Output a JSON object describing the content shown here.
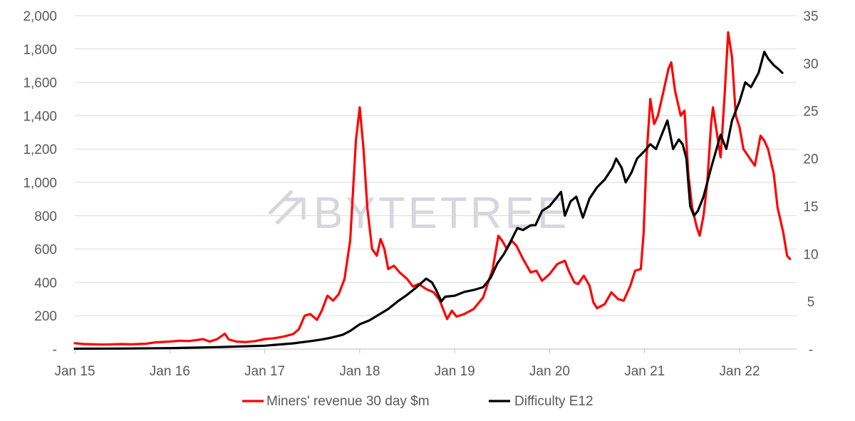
{
  "chart_data": {
    "type": "line",
    "watermark": "BYTETREE",
    "x_ticks": [
      "Jan 15",
      "Jan 16",
      "Jan 17",
      "Jan 18",
      "Jan 19",
      "Jan 20",
      "Jan 21",
      "Jan 22"
    ],
    "x_range": [
      2015.0,
      2022.6
    ],
    "y_left": {
      "ticks": [
        "-",
        "200",
        "400",
        "600",
        "800",
        "1,000",
        "1,200",
        "1,400",
        "1,600",
        "1,800",
        "2,000"
      ],
      "ylim": [
        0,
        2000
      ]
    },
    "y_right": {
      "ticks": [
        "-",
        "5",
        "10",
        "15",
        "20",
        "25",
        "30",
        "35"
      ],
      "ylim": [
        0,
        35
      ]
    },
    "grid": true,
    "legend_position": "bottom",
    "series": [
      {
        "name": "Miners' revenue 30 day $m",
        "color": "#ff0000",
        "axis": "left",
        "points": [
          [
            2015.0,
            35
          ],
          [
            2015.1,
            30
          ],
          [
            2015.3,
            27
          ],
          [
            2015.5,
            30
          ],
          [
            2015.6,
            28
          ],
          [
            2015.75,
            32
          ],
          [
            2015.85,
            40
          ],
          [
            2016.0,
            45
          ],
          [
            2016.1,
            50
          ],
          [
            2016.2,
            48
          ],
          [
            2016.3,
            55
          ],
          [
            2016.35,
            60
          ],
          [
            2016.42,
            45
          ],
          [
            2016.5,
            60
          ],
          [
            2016.58,
            92
          ],
          [
            2016.62,
            58
          ],
          [
            2016.7,
            45
          ],
          [
            2016.8,
            42
          ],
          [
            2016.9,
            48
          ],
          [
            2017.0,
            60
          ],
          [
            2017.1,
            65
          ],
          [
            2017.2,
            75
          ],
          [
            2017.3,
            90
          ],
          [
            2017.36,
            120
          ],
          [
            2017.42,
            200
          ],
          [
            2017.48,
            210
          ],
          [
            2017.55,
            175
          ],
          [
            2017.6,
            230
          ],
          [
            2017.66,
            320
          ],
          [
            2017.72,
            290
          ],
          [
            2017.78,
            330
          ],
          [
            2017.84,
            420
          ],
          [
            2017.9,
            650
          ],
          [
            2017.96,
            1250
          ],
          [
            2018.0,
            1450
          ],
          [
            2018.04,
            1200
          ],
          [
            2018.08,
            850
          ],
          [
            2018.13,
            600
          ],
          [
            2018.18,
            560
          ],
          [
            2018.22,
            660
          ],
          [
            2018.26,
            600
          ],
          [
            2018.3,
            480
          ],
          [
            2018.36,
            500
          ],
          [
            2018.42,
            460
          ],
          [
            2018.5,
            420
          ],
          [
            2018.56,
            375
          ],
          [
            2018.62,
            390
          ],
          [
            2018.7,
            360
          ],
          [
            2018.78,
            340
          ],
          [
            2018.84,
            295
          ],
          [
            2018.92,
            180
          ],
          [
            2018.97,
            230
          ],
          [
            2019.02,
            195
          ],
          [
            2019.1,
            210
          ],
          [
            2019.2,
            240
          ],
          [
            2019.3,
            310
          ],
          [
            2019.4,
            480
          ],
          [
            2019.46,
            680
          ],
          [
            2019.5,
            650
          ],
          [
            2019.55,
            600
          ],
          [
            2019.6,
            650
          ],
          [
            2019.65,
            620
          ],
          [
            2019.72,
            540
          ],
          [
            2019.8,
            460
          ],
          [
            2019.86,
            470
          ],
          [
            2019.92,
            410
          ],
          [
            2019.96,
            430
          ],
          [
            2020.0,
            450
          ],
          [
            2020.08,
            510
          ],
          [
            2020.16,
            530
          ],
          [
            2020.2,
            470
          ],
          [
            2020.26,
            400
          ],
          [
            2020.3,
            390
          ],
          [
            2020.36,
            440
          ],
          [
            2020.42,
            380
          ],
          [
            2020.46,
            280
          ],
          [
            2020.5,
            245
          ],
          [
            2020.58,
            270
          ],
          [
            2020.65,
            340
          ],
          [
            2020.72,
            300
          ],
          [
            2020.78,
            290
          ],
          [
            2020.85,
            380
          ],
          [
            2020.9,
            470
          ],
          [
            2020.96,
            480
          ],
          [
            2020.99,
            700
          ],
          [
            2021.02,
            1150
          ],
          [
            2021.06,
            1500
          ],
          [
            2021.1,
            1350
          ],
          [
            2021.14,
            1400
          ],
          [
            2021.2,
            1550
          ],
          [
            2021.25,
            1680
          ],
          [
            2021.28,
            1720
          ],
          [
            2021.32,
            1550
          ],
          [
            2021.38,
            1400
          ],
          [
            2021.42,
            1430
          ],
          [
            2021.46,
            1050
          ],
          [
            2021.5,
            850
          ],
          [
            2021.55,
            730
          ],
          [
            2021.58,
            680
          ],
          [
            2021.62,
            800
          ],
          [
            2021.66,
            1000
          ],
          [
            2021.7,
            1350
          ],
          [
            2021.72,
            1450
          ],
          [
            2021.76,
            1300
          ],
          [
            2021.8,
            1150
          ],
          [
            2021.84,
            1500
          ],
          [
            2021.88,
            1900
          ],
          [
            2021.92,
            1750
          ],
          [
            2021.96,
            1400
          ],
          [
            2022.0,
            1330
          ],
          [
            2022.04,
            1200
          ],
          [
            2022.1,
            1150
          ],
          [
            2022.16,
            1100
          ],
          [
            2022.22,
            1280
          ],
          [
            2022.26,
            1250
          ],
          [
            2022.3,
            1200
          ],
          [
            2022.36,
            1050
          ],
          [
            2022.4,
            850
          ],
          [
            2022.46,
            700
          ],
          [
            2022.5,
            560
          ],
          [
            2022.53,
            540
          ]
        ]
      },
      {
        "name": "Difficulty E12",
        "color": "#000000",
        "axis": "right",
        "points": [
          [
            2015.0,
            0.04
          ],
          [
            2015.5,
            0.05
          ],
          [
            2016.0,
            0.1
          ],
          [
            2016.5,
            0.2
          ],
          [
            2017.0,
            0.35
          ],
          [
            2017.3,
            0.6
          ],
          [
            2017.5,
            0.85
          ],
          [
            2017.6,
            1.0
          ],
          [
            2017.7,
            1.2
          ],
          [
            2017.82,
            1.5
          ],
          [
            2017.9,
            1.9
          ],
          [
            2018.0,
            2.6
          ],
          [
            2018.1,
            3.0
          ],
          [
            2018.2,
            3.6
          ],
          [
            2018.3,
            4.2
          ],
          [
            2018.4,
            5.0
          ],
          [
            2018.5,
            5.7
          ],
          [
            2018.6,
            6.5
          ],
          [
            2018.7,
            7.4
          ],
          [
            2018.76,
            7.0
          ],
          [
            2018.8,
            6.3
          ],
          [
            2018.86,
            5.0
          ],
          [
            2018.9,
            5.5
          ],
          [
            2019.0,
            5.6
          ],
          [
            2019.1,
            6.0
          ],
          [
            2019.2,
            6.2
          ],
          [
            2019.3,
            6.5
          ],
          [
            2019.38,
            7.5
          ],
          [
            2019.45,
            9.0
          ],
          [
            2019.52,
            10.0
          ],
          [
            2019.6,
            11.5
          ],
          [
            2019.66,
            12.7
          ],
          [
            2019.72,
            12.5
          ],
          [
            2019.8,
            13.0
          ],
          [
            2019.85,
            13.0
          ],
          [
            2019.92,
            14.5
          ],
          [
            2020.0,
            15.0
          ],
          [
            2020.08,
            16.0
          ],
          [
            2020.12,
            16.5
          ],
          [
            2020.16,
            14.0
          ],
          [
            2020.22,
            15.5
          ],
          [
            2020.28,
            16.0
          ],
          [
            2020.35,
            13.8
          ],
          [
            2020.42,
            15.8
          ],
          [
            2020.5,
            17.0
          ],
          [
            2020.58,
            17.8
          ],
          [
            2020.66,
            19.0
          ],
          [
            2020.7,
            20.0
          ],
          [
            2020.76,
            19.0
          ],
          [
            2020.8,
            17.5
          ],
          [
            2020.86,
            18.5
          ],
          [
            2020.92,
            20.0
          ],
          [
            2021.0,
            20.8
          ],
          [
            2021.06,
            21.5
          ],
          [
            2021.12,
            21.0
          ],
          [
            2021.18,
            22.5
          ],
          [
            2021.24,
            24.0
          ],
          [
            2021.3,
            21.0
          ],
          [
            2021.36,
            22.0
          ],
          [
            2021.4,
            21.5
          ],
          [
            2021.44,
            20.0
          ],
          [
            2021.48,
            15.0
          ],
          [
            2021.52,
            14.0
          ],
          [
            2021.56,
            14.5
          ],
          [
            2021.62,
            16.0
          ],
          [
            2021.7,
            19.0
          ],
          [
            2021.8,
            22.5
          ],
          [
            2021.86,
            21.0
          ],
          [
            2021.92,
            24.0
          ],
          [
            2022.0,
            26.0
          ],
          [
            2022.06,
            28.0
          ],
          [
            2022.12,
            27.5
          ],
          [
            2022.2,
            29.0
          ],
          [
            2022.26,
            31.2
          ],
          [
            2022.3,
            30.5
          ],
          [
            2022.36,
            29.8
          ],
          [
            2022.42,
            29.3
          ],
          [
            2022.45,
            29.0
          ]
        ]
      }
    ]
  }
}
